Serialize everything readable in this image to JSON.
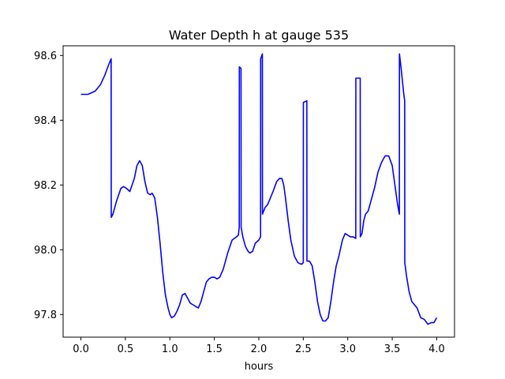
{
  "chart_data": {
    "type": "line",
    "title": "Water Depth h at gauge 535",
    "xlabel": "hours",
    "ylabel": "",
    "xlim": [
      -0.2,
      4.2
    ],
    "ylim": [
      97.73,
      98.63
    ],
    "x_ticks": [
      0.0,
      0.5,
      1.0,
      1.5,
      2.0,
      2.5,
      3.0,
      3.5,
      4.0
    ],
    "x_tick_labels": [
      "0.0",
      "0.5",
      "1.0",
      "1.5",
      "2.0",
      "2.5",
      "3.0",
      "3.5",
      "4.0"
    ],
    "y_ticks": [
      97.8,
      98.0,
      98.2,
      98.4,
      98.6
    ],
    "y_tick_labels": [
      "97.8",
      "98.0",
      "98.2",
      "98.4",
      "98.6"
    ],
    "grid": false,
    "legend": "none",
    "color": "#0000ff",
    "series": [
      {
        "x": [
          0.0,
          0.08,
          0.16,
          0.22,
          0.27,
          0.31,
          0.34,
          0.341,
          0.36,
          0.4,
          0.45,
          0.48,
          0.51,
          0.55,
          0.6,
          0.63,
          0.66,
          0.69,
          0.72,
          0.75,
          0.78,
          0.8,
          0.83,
          0.86,
          0.89,
          0.92,
          0.95,
          0.98,
          1.0,
          1.02,
          1.05,
          1.08,
          1.11,
          1.14,
          1.17,
          1.2,
          1.23,
          1.26,
          1.29,
          1.32,
          1.35,
          1.38,
          1.41,
          1.44,
          1.47,
          1.5,
          1.53,
          1.56,
          1.6,
          1.65,
          1.7,
          1.75,
          1.77,
          1.78,
          1.781,
          1.8,
          1.801,
          1.82,
          1.85,
          1.88,
          1.9,
          1.93,
          1.96,
          2.0,
          2.02,
          2.021,
          2.04,
          2.041,
          2.07,
          2.1,
          2.13,
          2.16,
          2.2,
          2.23,
          2.26,
          2.28,
          2.3,
          2.33,
          2.36,
          2.4,
          2.44,
          2.48,
          2.5,
          2.501,
          2.54,
          2.541,
          2.57,
          2.6,
          2.63,
          2.66,
          2.69,
          2.72,
          2.75,
          2.78,
          2.81,
          2.84,
          2.87,
          2.9,
          2.94,
          2.97,
          3.0,
          3.03,
          3.06,
          3.09,
          3.091,
          3.14,
          3.141,
          3.16,
          3.18,
          3.2,
          3.23,
          3.26,
          3.3,
          3.34,
          3.38,
          3.42,
          3.46,
          3.5,
          3.53,
          3.56,
          3.58,
          3.581,
          3.6,
          3.63,
          3.64,
          3.641,
          3.66,
          3.69,
          3.72,
          3.75,
          3.78,
          3.82,
          3.86,
          3.9,
          3.94,
          3.97,
          4.0
        ],
        "y": [
          98.48,
          98.48,
          98.49,
          98.51,
          98.54,
          98.57,
          98.59,
          98.1,
          98.11,
          98.15,
          98.19,
          98.195,
          98.19,
          98.18,
          98.22,
          98.26,
          98.275,
          98.26,
          98.21,
          98.175,
          98.17,
          98.175,
          98.16,
          98.1,
          98.02,
          97.93,
          97.86,
          97.82,
          97.8,
          97.79,
          97.795,
          97.81,
          97.83,
          97.86,
          97.865,
          97.85,
          97.835,
          97.83,
          97.825,
          97.82,
          97.84,
          97.87,
          97.9,
          97.91,
          97.915,
          97.915,
          97.91,
          97.915,
          97.94,
          97.99,
          98.03,
          98.04,
          98.045,
          98.07,
          98.565,
          98.56,
          98.07,
          98.04,
          98.01,
          97.995,
          97.99,
          97.995,
          98.02,
          98.03,
          98.04,
          98.59,
          98.605,
          98.11,
          98.13,
          98.14,
          98.16,
          98.18,
          98.21,
          98.22,
          98.22,
          98.2,
          98.16,
          98.09,
          98.03,
          97.98,
          97.96,
          97.955,
          97.96,
          98.455,
          98.46,
          97.965,
          97.965,
          97.95,
          97.9,
          97.84,
          97.8,
          97.78,
          97.78,
          97.79,
          97.84,
          97.9,
          97.95,
          97.98,
          98.03,
          98.05,
          98.045,
          98.04,
          98.04,
          98.035,
          98.53,
          98.53,
          98.04,
          98.05,
          98.09,
          98.11,
          98.12,
          98.15,
          98.19,
          98.24,
          98.27,
          98.29,
          98.29,
          98.26,
          98.2,
          98.14,
          98.11,
          98.605,
          98.56,
          98.48,
          98.46,
          97.96,
          97.92,
          97.87,
          97.84,
          97.83,
          97.82,
          97.79,
          97.785,
          97.77,
          97.775,
          97.775,
          97.79
        ]
      }
    ]
  }
}
